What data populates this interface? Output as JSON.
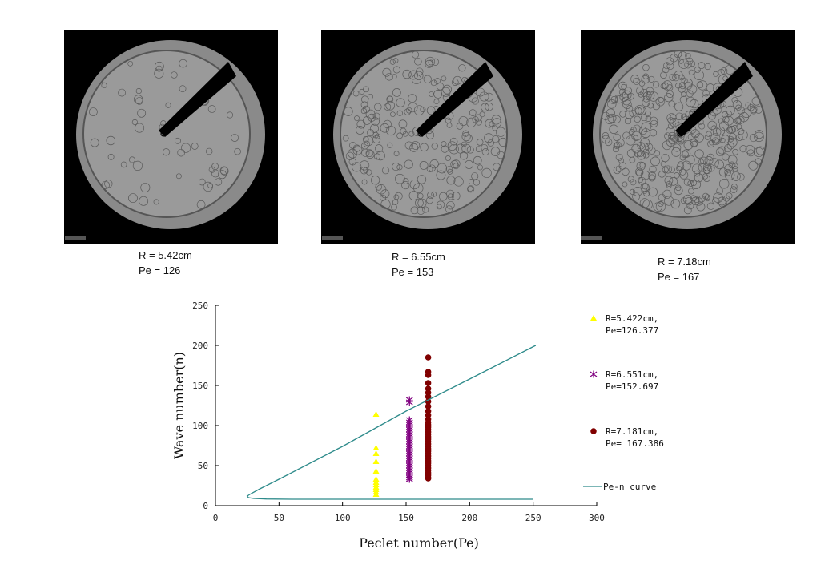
{
  "panels": [
    {
      "radius_label": "R = 5.42cm",
      "pe_label": "Pe = 126",
      "cell_density": 0.15
    },
    {
      "radius_label": "R = 6.55cm",
      "pe_label": "Pe = 153",
      "cell_density": 0.6
    },
    {
      "radius_label": "R = 7.18cm",
      "pe_label": "Pe = 167",
      "cell_density": 1.0
    }
  ],
  "chart_data": {
    "type": "scatter",
    "xlabel": "Peclet number(Pe)",
    "ylabel": "Wave number(n)",
    "xlim": [
      0,
      300
    ],
    "ylim": [
      0,
      250
    ],
    "xticks": [
      "0",
      "50",
      "100",
      "150",
      "200",
      "250",
      "300"
    ],
    "yticks": [
      "0",
      "50",
      "100",
      "150",
      "200",
      "250"
    ],
    "grid": false,
    "legend_position": "right",
    "series": [
      {
        "name": "R=5.422cm,",
        "name2": "Pe=126.377",
        "marker": "triangle",
        "color": "#ffff00",
        "x": 126.377,
        "y": [
          114,
          72,
          65,
          55,
          43,
          33,
          29,
          26,
          23,
          20,
          17,
          14
        ]
      },
      {
        "name": "R=6.551cm,",
        "name2": "Pe=152.697",
        "marker": "asterisk",
        "color": "#800080",
        "x": 152.697,
        "y": [
          132,
          129,
          107,
          104,
          101,
          98,
          95,
          92,
          89,
          86,
          83,
          80,
          77,
          74,
          71,
          68,
          65,
          62,
          59,
          56,
          53,
          50,
          47,
          44,
          41,
          38,
          35,
          33
        ]
      },
      {
        "name": "R=7.181cm,",
        "name2": "Pe= 167.386",
        "marker": "circle",
        "color": "#800000",
        "x": 167.386,
        "y": [
          185,
          167,
          163,
          153,
          146,
          141,
          136,
          130,
          124,
          118,
          113,
          108,
          104,
          101,
          98,
          95,
          92,
          89,
          86,
          83,
          80,
          77,
          74,
          71,
          68,
          65,
          62,
          59,
          56,
          53,
          50,
          47,
          44,
          41,
          38,
          35,
          34
        ]
      },
      {
        "name": "Pe-n curve",
        "marker": "line",
        "color": "#2e8b8b",
        "points": [
          [
            252,
            200
          ],
          [
            200,
            158
          ],
          [
            150,
            118
          ],
          [
            100,
            74
          ],
          [
            50,
            33
          ],
          [
            35,
            21
          ],
          [
            28,
            15
          ],
          [
            25,
            12
          ],
          [
            26,
            10
          ],
          [
            30,
            9
          ],
          [
            40,
            8.3
          ],
          [
            60,
            8
          ],
          [
            250,
            8
          ]
        ]
      }
    ]
  }
}
